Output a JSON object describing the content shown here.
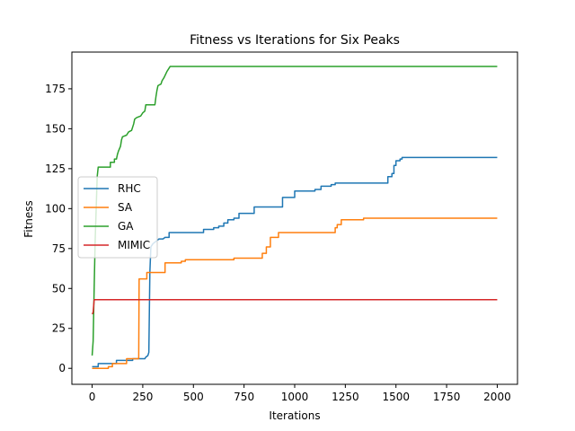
{
  "chart_data": {
    "type": "line",
    "title": "Fitness vs Iterations for Six Peaks",
    "xlabel": "Iterations",
    "ylabel": "Fitness",
    "xlim": [
      -100,
      2100
    ],
    "ylim": [
      -10,
      198
    ],
    "xticks": [
      0,
      250,
      500,
      750,
      1000,
      1250,
      1500,
      1750,
      2000
    ],
    "yticks": [
      0,
      25,
      50,
      75,
      100,
      125,
      150,
      175
    ],
    "grid": false,
    "legend_position": "center-left",
    "series": [
      {
        "name": "RHC",
        "color": "#1f77b4",
        "points": [
          [
            0,
            1
          ],
          [
            30,
            1
          ],
          [
            30,
            3
          ],
          [
            120,
            3
          ],
          [
            120,
            5
          ],
          [
            200,
            5
          ],
          [
            200,
            6
          ],
          [
            260,
            6
          ],
          [
            265,
            7
          ],
          [
            275,
            8
          ],
          [
            280,
            10
          ],
          [
            285,
            60
          ],
          [
            290,
            76
          ],
          [
            300,
            78
          ],
          [
            310,
            79
          ],
          [
            320,
            80
          ],
          [
            330,
            81
          ],
          [
            350,
            81
          ],
          [
            360,
            82
          ],
          [
            380,
            82
          ],
          [
            380,
            85
          ],
          [
            550,
            85
          ],
          [
            550,
            87
          ],
          [
            600,
            87
          ],
          [
            600,
            88
          ],
          [
            625,
            88
          ],
          [
            625,
            89
          ],
          [
            650,
            89
          ],
          [
            650,
            91
          ],
          [
            670,
            91
          ],
          [
            670,
            93
          ],
          [
            700,
            93
          ],
          [
            700,
            94
          ],
          [
            725,
            94
          ],
          [
            725,
            97
          ],
          [
            800,
            97
          ],
          [
            800,
            101
          ],
          [
            940,
            101
          ],
          [
            940,
            107
          ],
          [
            1000,
            107
          ],
          [
            1000,
            111
          ],
          [
            1100,
            111
          ],
          [
            1100,
            112
          ],
          [
            1130,
            112
          ],
          [
            1130,
            114
          ],
          [
            1180,
            114
          ],
          [
            1180,
            115
          ],
          [
            1200,
            115
          ],
          [
            1200,
            116
          ],
          [
            1460,
            116
          ],
          [
            1460,
            120
          ],
          [
            1480,
            120
          ],
          [
            1480,
            122
          ],
          [
            1490,
            122
          ],
          [
            1490,
            127
          ],
          [
            1500,
            127
          ],
          [
            1500,
            130
          ],
          [
            1520,
            130
          ],
          [
            1520,
            131
          ],
          [
            1530,
            131
          ],
          [
            1530,
            132
          ],
          [
            2000,
            132
          ]
        ]
      },
      {
        "name": "SA",
        "color": "#ff7f0e",
        "points": [
          [
            0,
            0
          ],
          [
            80,
            0
          ],
          [
            80,
            1
          ],
          [
            100,
            1
          ],
          [
            100,
            3
          ],
          [
            170,
            3
          ],
          [
            170,
            6
          ],
          [
            230,
            6
          ],
          [
            232,
            56
          ],
          [
            270,
            56
          ],
          [
            270,
            60
          ],
          [
            360,
            60
          ],
          [
            360,
            66
          ],
          [
            440,
            66
          ],
          [
            440,
            67
          ],
          [
            460,
            67
          ],
          [
            460,
            68
          ],
          [
            700,
            68
          ],
          [
            700,
            69
          ],
          [
            840,
            69
          ],
          [
            840,
            72
          ],
          [
            860,
            72
          ],
          [
            860,
            76
          ],
          [
            880,
            76
          ],
          [
            880,
            82
          ],
          [
            920,
            82
          ],
          [
            920,
            85
          ],
          [
            1200,
            85
          ],
          [
            1200,
            88
          ],
          [
            1210,
            88
          ],
          [
            1210,
            90
          ],
          [
            1230,
            90
          ],
          [
            1230,
            93
          ],
          [
            1340,
            93
          ],
          [
            1340,
            94
          ],
          [
            2000,
            94
          ]
        ]
      },
      {
        "name": "GA",
        "color": "#2ca02c",
        "points": [
          [
            0,
            8
          ],
          [
            5,
            17
          ],
          [
            10,
            50
          ],
          [
            15,
            80
          ],
          [
            20,
            100
          ],
          [
            25,
            120
          ],
          [
            30,
            126
          ],
          [
            90,
            126
          ],
          [
            90,
            129
          ],
          [
            110,
            129
          ],
          [
            110,
            131
          ],
          [
            120,
            131
          ],
          [
            125,
            134
          ],
          [
            130,
            136
          ],
          [
            140,
            139
          ],
          [
            145,
            143
          ],
          [
            150,
            145
          ],
          [
            170,
            146
          ],
          [
            180,
            148
          ],
          [
            195,
            149
          ],
          [
            205,
            153
          ],
          [
            210,
            156
          ],
          [
            220,
            157
          ],
          [
            240,
            158
          ],
          [
            250,
            160
          ],
          [
            260,
            161
          ],
          [
            265,
            165
          ],
          [
            310,
            165
          ],
          [
            315,
            170
          ],
          [
            320,
            174
          ],
          [
            325,
            177
          ],
          [
            340,
            178
          ],
          [
            345,
            180
          ],
          [
            355,
            182
          ],
          [
            370,
            186
          ],
          [
            380,
            188
          ],
          [
            385,
            189
          ],
          [
            2000,
            189
          ]
        ]
      },
      {
        "name": "MIMIC",
        "color": "#d62728",
        "points": [
          [
            0,
            34
          ],
          [
            5,
            35
          ],
          [
            10,
            43
          ],
          [
            2000,
            43
          ]
        ]
      }
    ]
  }
}
